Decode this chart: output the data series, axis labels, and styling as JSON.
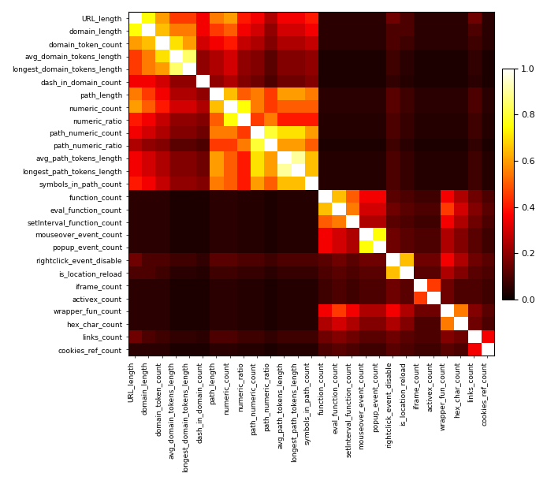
{
  "labels": [
    "URL_length",
    "domain_length",
    "domain_token_count",
    "avg_domain_tokens_length",
    "longest_domain_tokens_length",
    "dash_in_domain_count",
    "path_length",
    "numeric_count",
    "numeric_ratio",
    "path_numeric_count",
    "path_numeric_ratio",
    "avg_path_tokens_length",
    "longest_path_tokens_length",
    "symbols_in_path_count",
    "function_count",
    "eval_function_count",
    "setInterval_function_count",
    "mouseover_event_count",
    "popup_event_count",
    "rightclick_event_disable",
    "is_location_reload",
    "iframe_count",
    "activex_count",
    "wrapper_fun_count",
    "hex_char_count",
    "links_count",
    "cookies_ref_count"
  ],
  "corr_matrix": [
    [
      1.0,
      0.75,
      0.6,
      0.45,
      0.45,
      0.35,
      0.55,
      0.6,
      0.4,
      0.35,
      0.25,
      0.35,
      0.35,
      0.4,
      0.05,
      0.05,
      0.05,
      0.05,
      0.05,
      0.15,
      0.1,
      0.05,
      0.05,
      0.05,
      0.05,
      0.15,
      0.05
    ],
    [
      0.75,
      1.0,
      0.65,
      0.55,
      0.55,
      0.35,
      0.45,
      0.5,
      0.35,
      0.3,
      0.2,
      0.3,
      0.3,
      0.35,
      0.05,
      0.05,
      0.05,
      0.05,
      0.05,
      0.1,
      0.1,
      0.05,
      0.05,
      0.05,
      0.05,
      0.1,
      0.05
    ],
    [
      0.6,
      0.65,
      1.0,
      0.7,
      0.6,
      0.3,
      0.35,
      0.4,
      0.28,
      0.25,
      0.18,
      0.25,
      0.25,
      0.28,
      0.05,
      0.05,
      0.05,
      0.05,
      0.05,
      0.1,
      0.08,
      0.05,
      0.05,
      0.05,
      0.05,
      0.08,
      0.05
    ],
    [
      0.45,
      0.55,
      0.7,
      1.0,
      0.85,
      0.2,
      0.25,
      0.3,
      0.2,
      0.18,
      0.12,
      0.18,
      0.18,
      0.2,
      0.03,
      0.03,
      0.03,
      0.03,
      0.03,
      0.08,
      0.05,
      0.03,
      0.03,
      0.03,
      0.03,
      0.06,
      0.03
    ],
    [
      0.45,
      0.55,
      0.6,
      0.85,
      1.0,
      0.2,
      0.25,
      0.3,
      0.2,
      0.18,
      0.12,
      0.18,
      0.18,
      0.2,
      0.03,
      0.03,
      0.03,
      0.03,
      0.03,
      0.08,
      0.05,
      0.03,
      0.03,
      0.03,
      0.03,
      0.06,
      0.03
    ],
    [
      0.35,
      0.35,
      0.3,
      0.2,
      0.2,
      1.0,
      0.2,
      0.25,
      0.18,
      0.15,
      0.1,
      0.15,
      0.15,
      0.18,
      0.03,
      0.03,
      0.03,
      0.03,
      0.03,
      0.06,
      0.04,
      0.03,
      0.03,
      0.03,
      0.03,
      0.05,
      0.03
    ],
    [
      0.55,
      0.45,
      0.35,
      0.25,
      0.25,
      0.2,
      1.0,
      0.65,
      0.5,
      0.55,
      0.45,
      0.6,
      0.6,
      0.55,
      0.05,
      0.05,
      0.05,
      0.05,
      0.05,
      0.12,
      0.08,
      0.05,
      0.05,
      0.05,
      0.05,
      0.1,
      0.05
    ],
    [
      0.6,
      0.5,
      0.4,
      0.3,
      0.3,
      0.25,
      0.65,
      1.0,
      0.75,
      0.55,
      0.45,
      0.5,
      0.5,
      0.5,
      0.05,
      0.05,
      0.05,
      0.05,
      0.05,
      0.12,
      0.08,
      0.05,
      0.05,
      0.05,
      0.05,
      0.1,
      0.05
    ],
    [
      0.4,
      0.35,
      0.28,
      0.2,
      0.2,
      0.18,
      0.5,
      0.75,
      1.0,
      0.45,
      0.55,
      0.4,
      0.4,
      0.4,
      0.04,
      0.04,
      0.04,
      0.04,
      0.04,
      0.1,
      0.07,
      0.04,
      0.04,
      0.04,
      0.04,
      0.08,
      0.04
    ],
    [
      0.35,
      0.3,
      0.25,
      0.18,
      0.18,
      0.15,
      0.55,
      0.55,
      0.45,
      1.0,
      0.8,
      0.7,
      0.7,
      0.6,
      0.04,
      0.04,
      0.04,
      0.04,
      0.04,
      0.1,
      0.07,
      0.04,
      0.04,
      0.04,
      0.04,
      0.08,
      0.04
    ],
    [
      0.25,
      0.2,
      0.18,
      0.12,
      0.12,
      0.1,
      0.45,
      0.45,
      0.55,
      0.8,
      1.0,
      0.6,
      0.6,
      0.5,
      0.03,
      0.03,
      0.03,
      0.03,
      0.03,
      0.08,
      0.05,
      0.03,
      0.03,
      0.03,
      0.03,
      0.06,
      0.03
    ],
    [
      0.35,
      0.3,
      0.25,
      0.18,
      0.18,
      0.15,
      0.6,
      0.5,
      0.4,
      0.7,
      0.6,
      1.0,
      0.9,
      0.65,
      0.04,
      0.04,
      0.04,
      0.04,
      0.04,
      0.1,
      0.07,
      0.04,
      0.04,
      0.04,
      0.04,
      0.08,
      0.04
    ],
    [
      0.35,
      0.3,
      0.25,
      0.18,
      0.18,
      0.15,
      0.6,
      0.5,
      0.4,
      0.7,
      0.6,
      0.9,
      1.0,
      0.65,
      0.04,
      0.04,
      0.04,
      0.04,
      0.04,
      0.1,
      0.07,
      0.04,
      0.04,
      0.04,
      0.04,
      0.08,
      0.04
    ],
    [
      0.4,
      0.35,
      0.28,
      0.2,
      0.2,
      0.18,
      0.55,
      0.5,
      0.4,
      0.6,
      0.5,
      0.65,
      0.65,
      1.0,
      0.04,
      0.04,
      0.04,
      0.04,
      0.04,
      0.1,
      0.07,
      0.04,
      0.04,
      0.04,
      0.04,
      0.08,
      0.04
    ],
    [
      0.05,
      0.05,
      0.05,
      0.03,
      0.03,
      0.03,
      0.05,
      0.05,
      0.04,
      0.04,
      0.03,
      0.04,
      0.04,
      0.04,
      1.0,
      0.65,
      0.5,
      0.35,
      0.35,
      0.12,
      0.1,
      0.08,
      0.08,
      0.35,
      0.25,
      0.15,
      0.1
    ],
    [
      0.05,
      0.05,
      0.05,
      0.03,
      0.03,
      0.03,
      0.05,
      0.05,
      0.04,
      0.04,
      0.03,
      0.04,
      0.04,
      0.04,
      0.65,
      1.0,
      0.55,
      0.3,
      0.3,
      0.15,
      0.12,
      0.1,
      0.1,
      0.45,
      0.3,
      0.18,
      0.12
    ],
    [
      0.05,
      0.05,
      0.05,
      0.03,
      0.03,
      0.03,
      0.05,
      0.05,
      0.04,
      0.04,
      0.03,
      0.04,
      0.04,
      0.04,
      0.5,
      0.55,
      1.0,
      0.25,
      0.25,
      0.12,
      0.1,
      0.08,
      0.08,
      0.35,
      0.25,
      0.15,
      0.1
    ],
    [
      0.05,
      0.05,
      0.05,
      0.03,
      0.03,
      0.03,
      0.05,
      0.05,
      0.04,
      0.04,
      0.03,
      0.04,
      0.04,
      0.04,
      0.35,
      0.3,
      0.25,
      1.0,
      0.75,
      0.15,
      0.12,
      0.1,
      0.1,
      0.25,
      0.18,
      0.12,
      0.08
    ],
    [
      0.05,
      0.05,
      0.05,
      0.03,
      0.03,
      0.03,
      0.05,
      0.05,
      0.04,
      0.04,
      0.03,
      0.04,
      0.04,
      0.04,
      0.35,
      0.3,
      0.25,
      0.75,
      1.0,
      0.15,
      0.12,
      0.1,
      0.1,
      0.25,
      0.18,
      0.12,
      0.08
    ],
    [
      0.15,
      0.1,
      0.1,
      0.08,
      0.08,
      0.06,
      0.12,
      0.12,
      0.1,
      0.1,
      0.08,
      0.1,
      0.1,
      0.1,
      0.12,
      0.15,
      0.12,
      0.15,
      0.15,
      1.0,
      0.65,
      0.15,
      0.15,
      0.35,
      0.25,
      0.15,
      0.12
    ],
    [
      0.1,
      0.1,
      0.08,
      0.05,
      0.05,
      0.04,
      0.08,
      0.08,
      0.07,
      0.07,
      0.05,
      0.07,
      0.07,
      0.07,
      0.1,
      0.12,
      0.1,
      0.12,
      0.12,
      0.65,
      1.0,
      0.12,
      0.12,
      0.25,
      0.18,
      0.12,
      0.1
    ],
    [
      0.05,
      0.05,
      0.05,
      0.03,
      0.03,
      0.03,
      0.05,
      0.05,
      0.04,
      0.04,
      0.03,
      0.04,
      0.04,
      0.04,
      0.08,
      0.1,
      0.08,
      0.1,
      0.1,
      0.15,
      0.12,
      1.0,
      0.45,
      0.15,
      0.1,
      0.1,
      0.08
    ],
    [
      0.05,
      0.05,
      0.05,
      0.03,
      0.03,
      0.03,
      0.05,
      0.05,
      0.04,
      0.04,
      0.03,
      0.04,
      0.04,
      0.04,
      0.08,
      0.1,
      0.08,
      0.1,
      0.1,
      0.15,
      0.12,
      0.45,
      1.0,
      0.15,
      0.1,
      0.1,
      0.08
    ],
    [
      0.05,
      0.05,
      0.05,
      0.03,
      0.03,
      0.03,
      0.05,
      0.05,
      0.04,
      0.04,
      0.03,
      0.04,
      0.04,
      0.04,
      0.35,
      0.45,
      0.35,
      0.25,
      0.25,
      0.35,
      0.25,
      0.15,
      0.15,
      1.0,
      0.55,
      0.18,
      0.12
    ],
    [
      0.05,
      0.05,
      0.05,
      0.03,
      0.03,
      0.03,
      0.05,
      0.05,
      0.04,
      0.04,
      0.03,
      0.04,
      0.04,
      0.04,
      0.25,
      0.3,
      0.25,
      0.18,
      0.18,
      0.25,
      0.18,
      0.1,
      0.1,
      0.55,
      1.0,
      0.15,
      0.1
    ],
    [
      0.15,
      0.1,
      0.08,
      0.06,
      0.06,
      0.05,
      0.1,
      0.1,
      0.08,
      0.08,
      0.06,
      0.08,
      0.08,
      0.08,
      0.15,
      0.18,
      0.15,
      0.12,
      0.12,
      0.15,
      0.12,
      0.1,
      0.1,
      0.18,
      0.15,
      1.0,
      0.35
    ],
    [
      0.05,
      0.05,
      0.05,
      0.03,
      0.03,
      0.03,
      0.05,
      0.05,
      0.04,
      0.04,
      0.03,
      0.04,
      0.04,
      0.04,
      0.1,
      0.12,
      0.1,
      0.08,
      0.08,
      0.12,
      0.1,
      0.08,
      0.08,
      0.12,
      0.1,
      0.35,
      1.0
    ]
  ],
  "cmap": "hot",
  "vmin": 0.0,
  "vmax": 1.0,
  "figsize": [
    6.94,
    6.14
  ],
  "dpi": 100,
  "tick_fontsize": 6.5,
  "cbar_tick_fontsize": 8
}
